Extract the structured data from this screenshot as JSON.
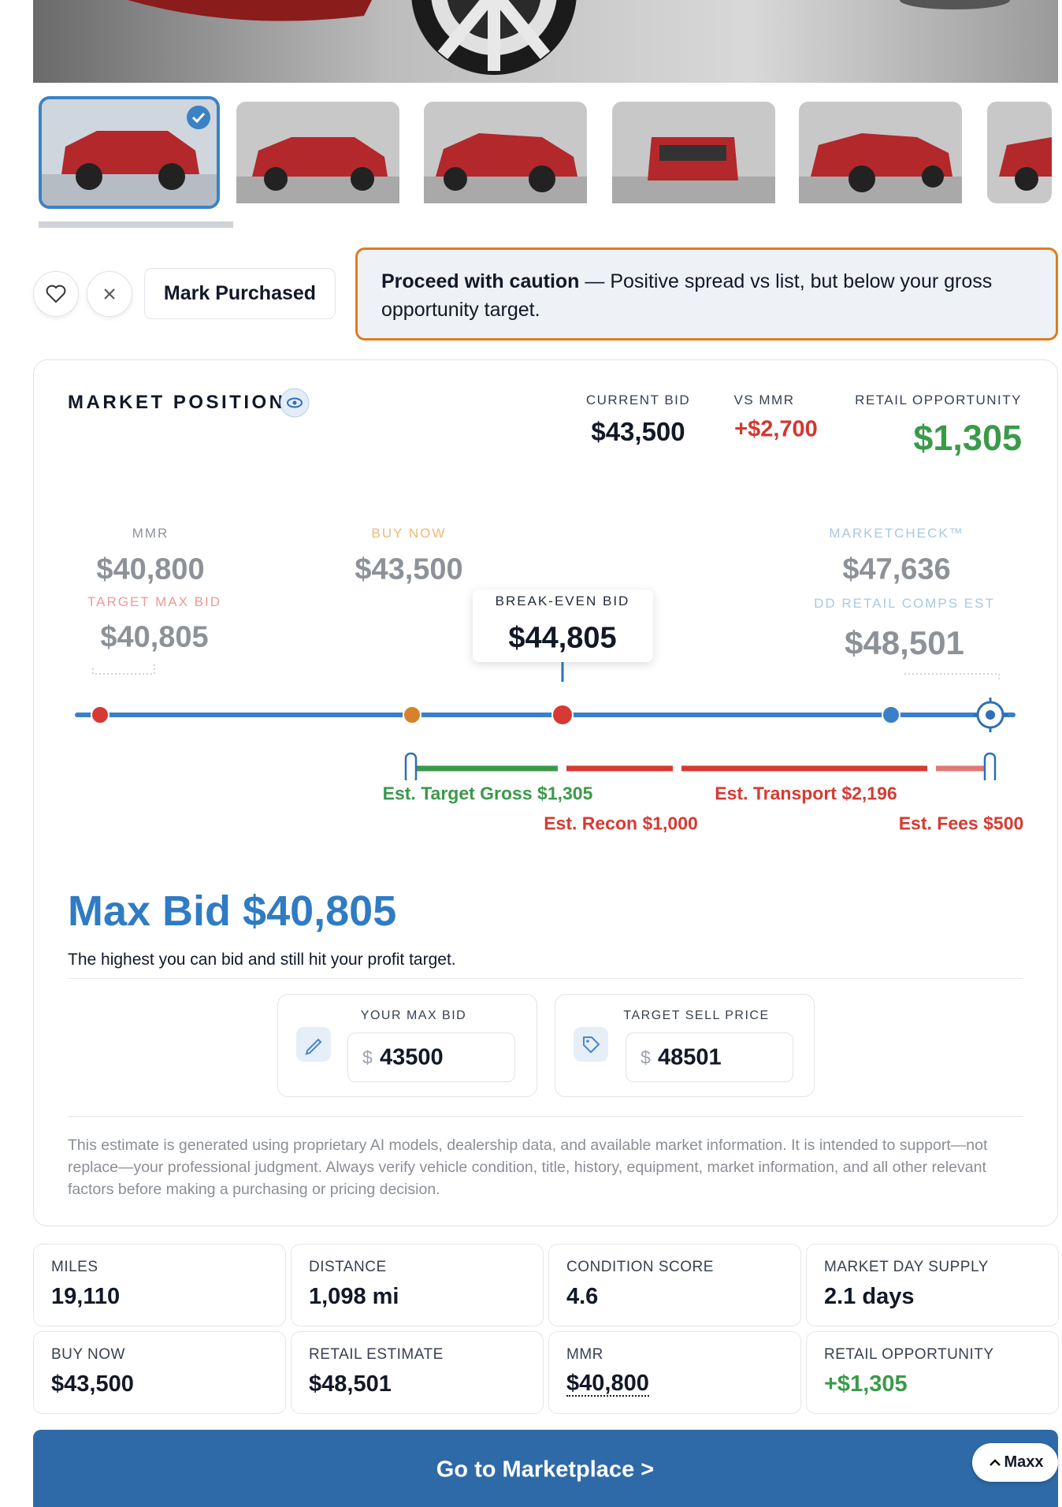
{
  "actions": {
    "mark_purchased": "Mark Purchased"
  },
  "alert": {
    "title": "Proceed with caution",
    "message": "— Positive spread vs list, but below your gross opportunity target."
  },
  "market_position": {
    "title": "MARKET POSITION",
    "summary": [
      {
        "label": "CURRENT BID",
        "value": "$43,500"
      },
      {
        "label": "VS MMR",
        "value": "+$2,700"
      },
      {
        "label": "RETAIL OPPORTUNITY",
        "value": "$1,305"
      }
    ],
    "markers": {
      "mmr": {
        "label": "MMR",
        "value": "$40,800"
      },
      "buy_now": {
        "label": "BUY NOW",
        "value": "$43,500"
      },
      "target_max_bid": {
        "label": "TARGET MAX BID",
        "value": "$40,805"
      },
      "break_even": {
        "label": "BREAK-EVEN BID",
        "value": "$44,805"
      },
      "marketcheck": {
        "label": "MARKETCHECK™",
        "value": "$47,636"
      },
      "dd_retail": {
        "label": "DD RETAIL COMPS EST",
        "value": "$48,501"
      }
    },
    "segments": [
      "Est. Target Gross $1,305",
      "Est. Recon $1,000",
      "Est. Transport $2,196",
      "Est. Fees $500"
    ],
    "max_bid": {
      "title": "Max Bid $40,805",
      "subtitle": "The highest you can bid and still hit your profit target."
    },
    "inputs": [
      {
        "label": "YOUR MAX BID",
        "prefix": "$",
        "value": "43500"
      },
      {
        "label": "TARGET SELL PRICE",
        "prefix": "$",
        "value": "48501"
      }
    ],
    "disclaimer": "This estimate is generated using proprietary AI models, dealership data, and available market information. It is intended to support—not replace—your professional judgment. Always verify vehicle condition, title, history, equipment, market information, and all other relevant factors before making a purchasing or pricing decision."
  },
  "stats": [
    {
      "label": "MILES",
      "value": "19,110"
    },
    {
      "label": "DISTANCE",
      "value": "1,098 mi"
    },
    {
      "label": "CONDITION SCORE",
      "value": "4.6"
    },
    {
      "label": "MARKET DAY SUPPLY",
      "value": "2.1 days"
    },
    {
      "label": "BUY NOW",
      "value": "$43,500"
    },
    {
      "label": "RETAIL ESTIMATE",
      "value": "$48,501"
    },
    {
      "label": "MMR",
      "value": "$40,800"
    },
    {
      "label": "RETAIL OPPORTUNITY",
      "value": "+$1,305"
    }
  ],
  "footer": {
    "button": "Go to Marketplace >",
    "assistant": "Maxx"
  }
}
